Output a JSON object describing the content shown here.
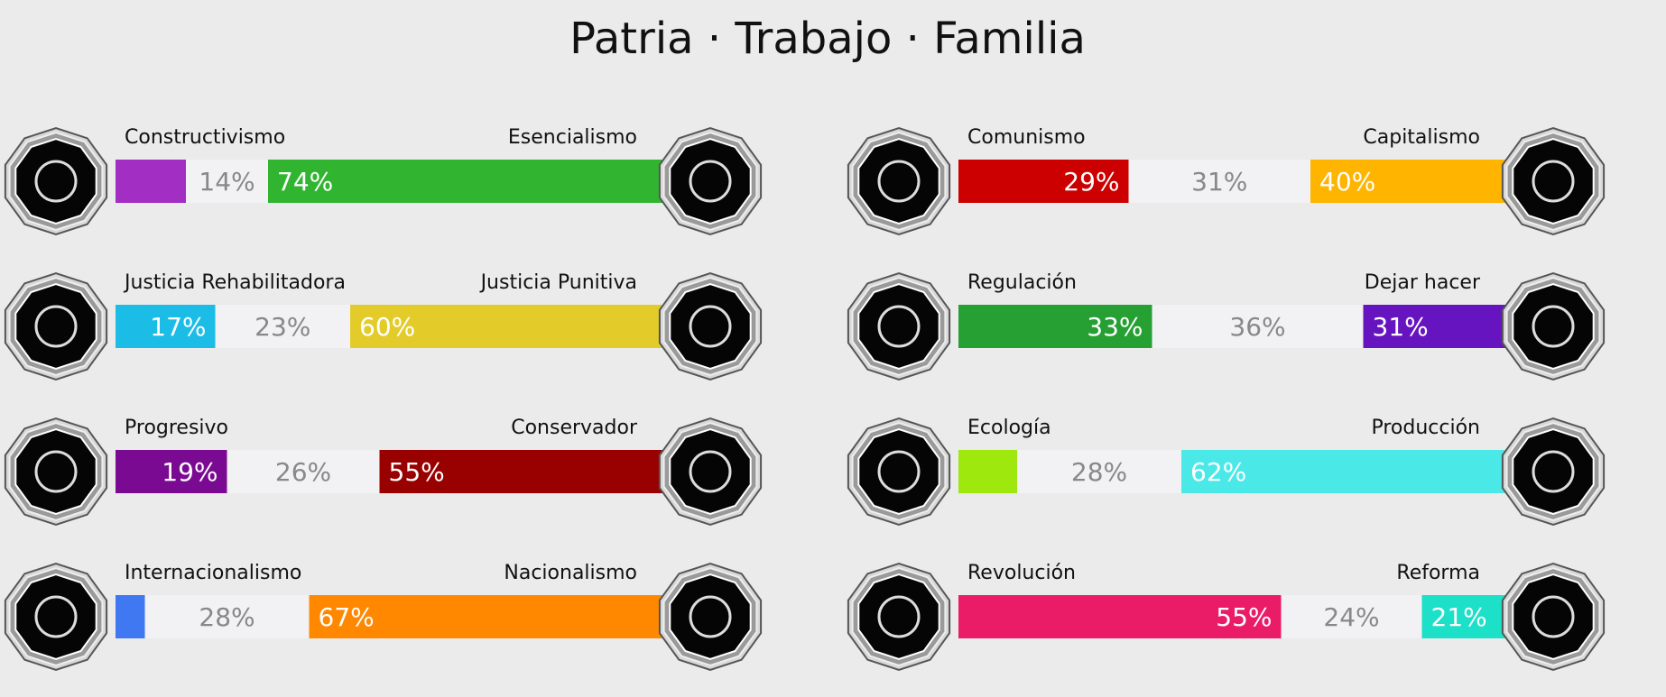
{
  "title": "Patria · Trabajo · Familia",
  "chart_data": [
    {
      "type": "stacked-bar",
      "left_label": "Constructivismo",
      "right_label": "Esencialismo",
      "values": [
        12,
        14,
        74
      ],
      "value_labels": [
        null,
        "14%",
        "74%"
      ],
      "colors": [
        "#a32ec4",
        "#f2f1f3",
        "#31b531"
      ]
    },
    {
      "type": "stacked-bar",
      "left_label": "Comunismo",
      "right_label": "Capitalismo",
      "values": [
        29,
        31,
        40
      ],
      "value_labels": [
        "29%",
        "31%",
        "40%"
      ],
      "colors": [
        "#cc0000",
        "#f2f1f3",
        "#ffb400"
      ]
    },
    {
      "type": "stacked-bar",
      "left_label": "Justicia Rehabilitadora",
      "right_label": "Justicia Punitiva",
      "values": [
        17,
        23,
        60
      ],
      "value_labels": [
        "17%",
        "23%",
        "60%"
      ],
      "colors": [
        "#1bbde6",
        "#f2f1f3",
        "#e3cc2a"
      ]
    },
    {
      "type": "stacked-bar",
      "left_label": "Regulación",
      "right_label": "Dejar hacer",
      "values": [
        33,
        36,
        31
      ],
      "value_labels": [
        "33%",
        "36%",
        "31%"
      ],
      "colors": [
        "#26a033",
        "#f2f1f3",
        "#6614c0"
      ]
    },
    {
      "type": "stacked-bar",
      "left_label": "Progresivo",
      "right_label": "Conservador",
      "values": [
        19,
        26,
        55
      ],
      "value_labels": [
        "19%",
        "26%",
        "55%"
      ],
      "colors": [
        "#7b0a92",
        "#f2f1f3",
        "#990000"
      ]
    },
    {
      "type": "stacked-bar",
      "left_label": "Ecología",
      "right_label": "Producción",
      "values": [
        10,
        28,
        62
      ],
      "value_labels": [
        null,
        "28%",
        "62%"
      ],
      "colors": [
        "#9ee80e",
        "#f2f1f3",
        "#4be8e8"
      ]
    },
    {
      "type": "stacked-bar",
      "left_label": "Internacionalismo",
      "right_label": "Nacionalismo",
      "values": [
        5,
        28,
        67
      ],
      "value_labels": [
        null,
        "28%",
        "67%"
      ],
      "colors": [
        "#3f78f0",
        "#f2f1f3",
        "#ff8800"
      ]
    },
    {
      "type": "stacked-bar",
      "left_label": "Revolución",
      "right_label": "Reforma",
      "values": [
        55,
        24,
        21
      ],
      "value_labels": [
        "55%",
        "24%",
        "21%"
      ],
      "colors": [
        "#ea1c68",
        "#f2f1f3",
        "#1ce0c8"
      ]
    }
  ]
}
